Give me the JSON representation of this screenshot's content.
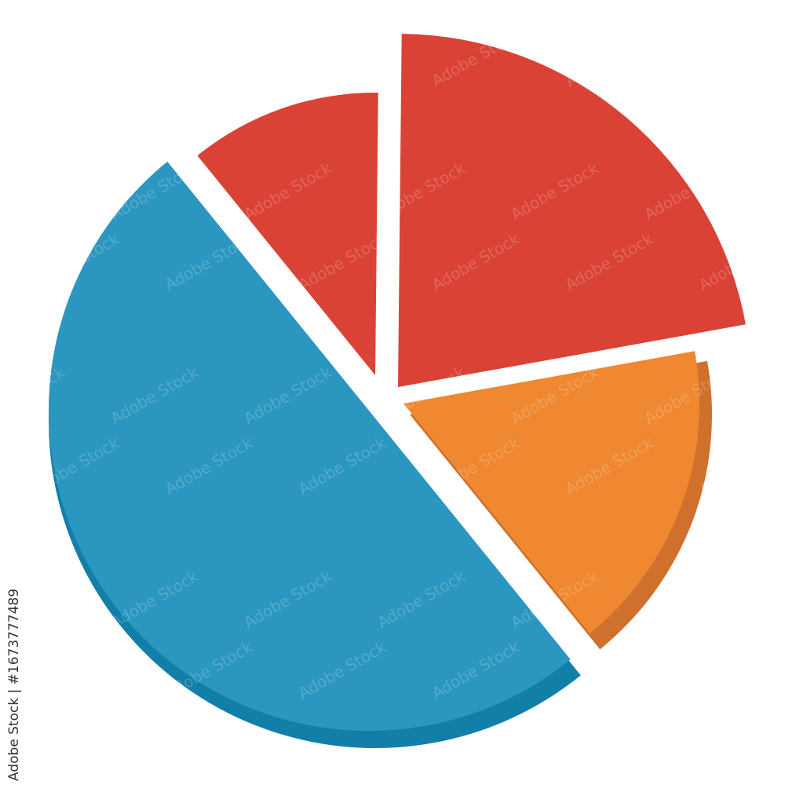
{
  "chart_data": {
    "type": "pie",
    "title": "",
    "exploded": true,
    "slices": [
      {
        "value": 11,
        "color": "#da4236",
        "shadow": "#da4236"
      },
      {
        "value": 22,
        "color": "#da4236",
        "shadow": "#da4236"
      },
      {
        "value": 17,
        "color": "#ef8830",
        "shadow": "#d0702d"
      },
      {
        "value": 50,
        "color": "#2b97c0",
        "shadow": "#127fa9"
      }
    ],
    "start_angle_deg": 321
  },
  "watermark": {
    "text": "Adobe Stock",
    "side_label": "Adobe Stock | #1673777489"
  }
}
